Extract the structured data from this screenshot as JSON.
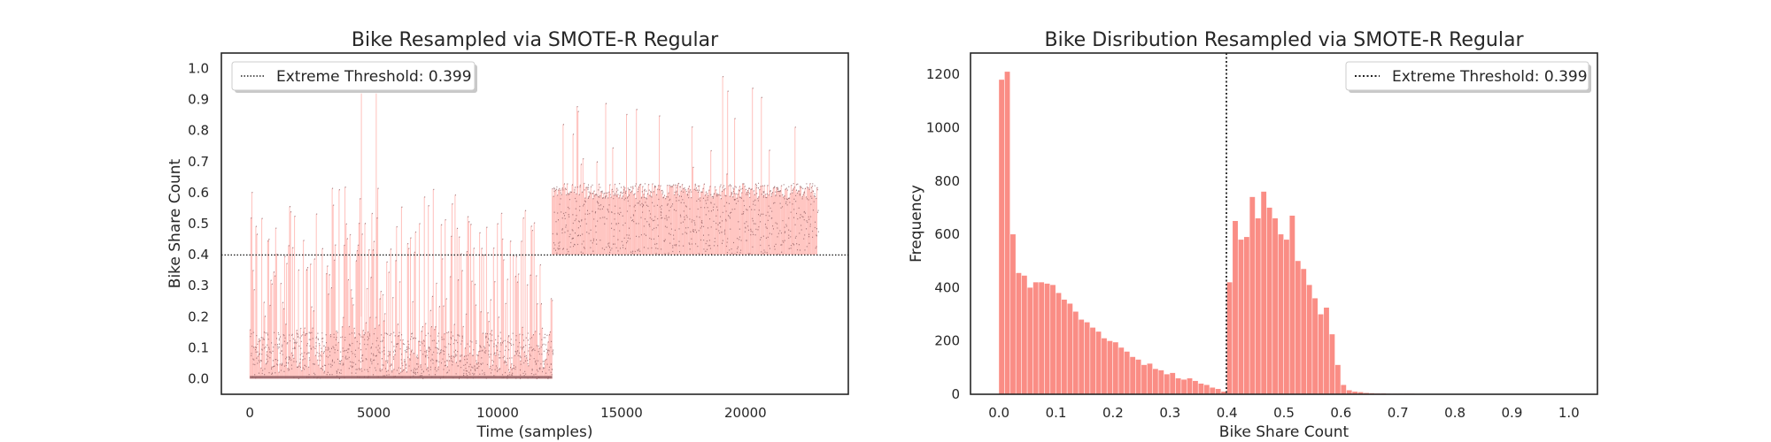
{
  "chart_data": [
    {
      "type": "scatter",
      "title": "Bike Resampled via SMOTE-R Regular",
      "xlabel": "Time (samples)",
      "ylabel": "Bike Share Count",
      "xlim": [
        -1150,
        24150
      ],
      "ylim": [
        -0.05,
        1.05
      ],
      "xticks": [
        0,
        5000,
        10000,
        15000,
        20000
      ],
      "yticks": [
        0.0,
        0.1,
        0.2,
        0.3,
        0.4,
        0.5,
        0.6,
        0.7,
        0.8,
        0.9,
        1.0
      ],
      "threshold": 0.399,
      "legend": {
        "label": "Extreme Threshold: 0.399",
        "placement": "upper left"
      },
      "series_description": "dense stem/scatter of resampled samples",
      "segments": [
        {
          "x_range": [
            0,
            8600
          ],
          "base_range": [
            0.0,
            0.15
          ],
          "peak_max": 0.62
        },
        {
          "x_range": [
            8600,
            8750
          ],
          "base_range": [
            0.0,
            0.1
          ],
          "peak_max": 0.3
        },
        {
          "x_range": [
            8750,
            12200
          ],
          "base_range": [
            0.0,
            0.15
          ],
          "peak_max": 0.55
        },
        {
          "x_range": [
            12200,
            22900
          ],
          "base_range": [
            0.4,
            0.63
          ],
          "peak_max": 0.99
        }
      ],
      "spikes": [
        {
          "x": 4500,
          "y": 0.92
        },
        {
          "x": 5100,
          "y": 0.92
        }
      ],
      "colors": {
        "stem": "#ffc0bc",
        "point": "#8b5a5e",
        "threshold": "#222222"
      }
    },
    {
      "type": "bar",
      "title": "Bike Disribution Resampled via SMOTE-R Regular",
      "xlabel": "Bike Share Count",
      "ylabel": "Frequency",
      "xlim": [
        -0.05,
        1.05
      ],
      "ylim": [
        0,
        1280
      ],
      "xticks": [
        0.0,
        0.1,
        0.2,
        0.3,
        0.4,
        0.5,
        0.6,
        0.7,
        0.8,
        0.9,
        1.0
      ],
      "yticks": [
        0,
        200,
        400,
        600,
        800,
        1000,
        1200
      ],
      "bin_width": 0.01,
      "bin_start": 0.0,
      "values": [
        1180,
        1210,
        600,
        455,
        445,
        400,
        420,
        420,
        415,
        410,
        380,
        355,
        340,
        310,
        280,
        270,
        250,
        235,
        210,
        200,
        195,
        175,
        160,
        140,
        130,
        110,
        115,
        95,
        90,
        75,
        80,
        60,
        55,
        60,
        50,
        40,
        35,
        25,
        20,
        10,
        420,
        650,
        580,
        590,
        740,
        660,
        760,
        700,
        660,
        600,
        580,
        670,
        500,
        470,
        410,
        360,
        300,
        325,
        225,
        110,
        35,
        15,
        10,
        8,
        5,
        4,
        3,
        3,
        2,
        2,
        2,
        2,
        2,
        1,
        1,
        1,
        1,
        1,
        1,
        1,
        1,
        1,
        1,
        1,
        1,
        1,
        1,
        1,
        1,
        1,
        1,
        1,
        1,
        1,
        1,
        1,
        1,
        1,
        1,
        1
      ],
      "threshold": 0.399,
      "legend": {
        "label": "Extreme Threshold: 0.399",
        "placement": "upper right"
      },
      "colors": {
        "bar": "#fa8d85",
        "threshold": "#222222"
      }
    }
  ]
}
